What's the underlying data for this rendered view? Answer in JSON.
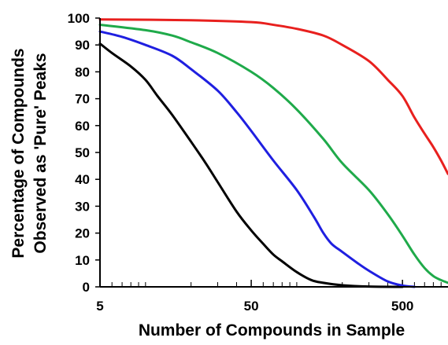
{
  "chart_data": {
    "type": "line",
    "title": "",
    "xlabel": "Number of Compounds in Sample",
    "ylabel_lines": [
      "Percentage of Compounds",
      "Observed as 'Pure' Peaks"
    ],
    "x_scale": "log",
    "xlim": [
      5,
      1000
    ],
    "ylim": [
      0,
      100
    ],
    "x_tick_labels": [
      "5",
      "50",
      "500"
    ],
    "x_tick_values": [
      5,
      50,
      500
    ],
    "x_minor_ticks": [
      6,
      7,
      8,
      9,
      10,
      20,
      30,
      40,
      60,
      70,
      80,
      90,
      100,
      200,
      300,
      400,
      600,
      700,
      800,
      900
    ],
    "y_ticks": [
      0,
      10,
      20,
      30,
      40,
      50,
      60,
      70,
      80,
      90,
      100
    ],
    "grid": false,
    "legend": "none",
    "series": [
      {
        "color": "#000000",
        "points": [
          [
            5,
            90.5
          ],
          [
            6,
            87
          ],
          [
            8,
            82
          ],
          [
            10,
            77
          ],
          [
            12,
            71
          ],
          [
            15,
            64
          ],
          [
            20,
            54
          ],
          [
            25,
            46
          ],
          [
            30,
            39
          ],
          [
            40,
            28
          ],
          [
            50,
            21
          ],
          [
            60,
            16
          ],
          [
            70,
            12
          ],
          [
            80,
            9.5
          ],
          [
            100,
            5.5
          ],
          [
            125,
            2.5
          ],
          [
            150,
            1.5
          ],
          [
            200,
            0.6
          ],
          [
            300,
            0.1
          ],
          [
            500,
            0
          ]
        ]
      },
      {
        "color": "#1f1fe0",
        "points": [
          [
            5,
            95
          ],
          [
            7,
            93
          ],
          [
            10,
            90
          ],
          [
            15,
            86
          ],
          [
            20,
            81
          ],
          [
            30,
            73
          ],
          [
            40,
            65
          ],
          [
            50,
            58
          ],
          [
            70,
            47
          ],
          [
            100,
            36
          ],
          [
            130,
            26
          ],
          [
            150,
            20
          ],
          [
            170,
            16
          ],
          [
            200,
            13
          ],
          [
            250,
            9
          ],
          [
            300,
            6
          ],
          [
            400,
            2
          ],
          [
            500,
            0.5
          ],
          [
            600,
            0
          ]
        ]
      },
      {
        "color": "#1faa4a",
        "points": [
          [
            5,
            97.5
          ],
          [
            10,
            95.5
          ],
          [
            15,
            93.5
          ],
          [
            20,
            91
          ],
          [
            30,
            87
          ],
          [
            50,
            80
          ],
          [
            70,
            74
          ],
          [
            100,
            66
          ],
          [
            150,
            55
          ],
          [
            200,
            46
          ],
          [
            300,
            36
          ],
          [
            400,
            27
          ],
          [
            500,
            19
          ],
          [
            600,
            12
          ],
          [
            700,
            7
          ],
          [
            800,
            4
          ],
          [
            900,
            2.5
          ],
          [
            1000,
            1.5
          ]
        ]
      },
      {
        "color": "#e8201e",
        "points": [
          [
            5,
            99.5
          ],
          [
            20,
            99.2
          ],
          [
            50,
            98.5
          ],
          [
            70,
            97.5
          ],
          [
            100,
            96
          ],
          [
            150,
            93.5
          ],
          [
            200,
            90
          ],
          [
            300,
            84
          ],
          [
            400,
            77
          ],
          [
            500,
            71
          ],
          [
            600,
            63
          ],
          [
            700,
            57
          ],
          [
            800,
            52
          ],
          [
            900,
            47
          ],
          [
            1000,
            42
          ]
        ]
      }
    ]
  }
}
